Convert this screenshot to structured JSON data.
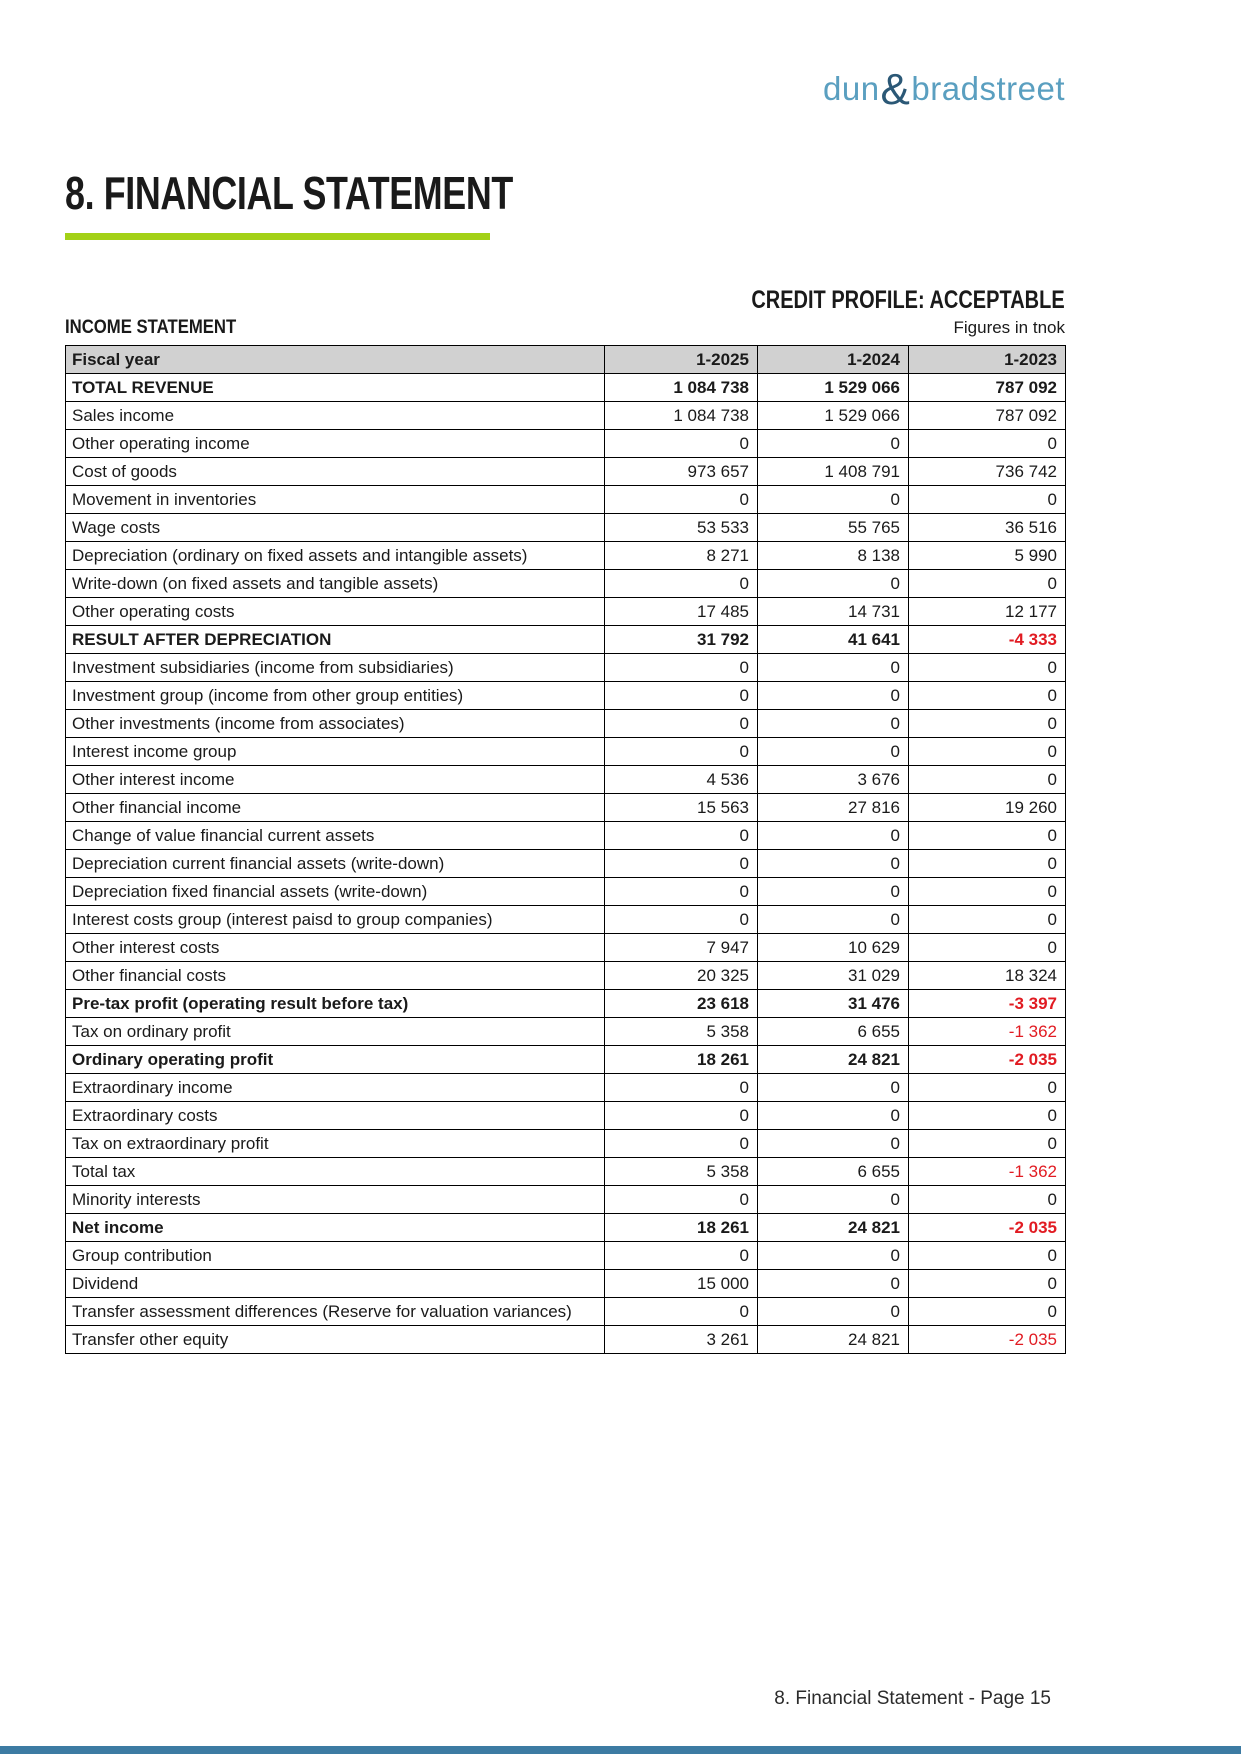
{
  "logo": {
    "dun": "dun",
    "amp": "&",
    "bradstreet": "bradstreet"
  },
  "page_title": "8. FINANCIAL STATEMENT",
  "credit_profile": "CREDIT PROFILE: ACCEPTABLE",
  "income_caption": "INCOME STATEMENT",
  "figures_caption": "Figures in tnok",
  "footer_text": "8. Financial Statement - Page 15",
  "colors": {
    "accent_green": "#a3d117",
    "logo_light_blue": "#5a9fc0",
    "logo_dark_blue": "#2b5876",
    "negative_red": "#e11b22",
    "header_gray": "#d1d1d1",
    "bottom_bar_blue": "#3d7ba3"
  },
  "table": {
    "header": {
      "label": "Fiscal year",
      "cols": [
        "1-2025",
        "1-2024",
        "1-2023"
      ]
    },
    "rows": [
      {
        "label": "TOTAL REVENUE",
        "bold": true,
        "values": [
          "1 084 738",
          "1 529 066",
          "787 092"
        ]
      },
      {
        "label": "Sales income",
        "bold": false,
        "values": [
          "1 084 738",
          "1 529 066",
          "787 092"
        ]
      },
      {
        "label": "Other operating income",
        "bold": false,
        "values": [
          "0",
          "0",
          "0"
        ]
      },
      {
        "label": "Cost of goods",
        "bold": false,
        "values": [
          "973 657",
          "1 408 791",
          "736 742"
        ]
      },
      {
        "label": "Movement in inventories",
        "bold": false,
        "values": [
          "0",
          "0",
          "0"
        ]
      },
      {
        "label": "Wage costs",
        "bold": false,
        "values": [
          "53 533",
          "55 765",
          "36 516"
        ]
      },
      {
        "label": "Depreciation (ordinary on fixed assets and intangible assets)",
        "bold": false,
        "values": [
          "8 271",
          "8 138",
          "5 990"
        ]
      },
      {
        "label": "Write-down (on fixed assets and tangible assets)",
        "bold": false,
        "values": [
          "0",
          "0",
          "0"
        ]
      },
      {
        "label": "Other operating costs",
        "bold": false,
        "values": [
          "17 485",
          "14 731",
          "12 177"
        ]
      },
      {
        "label": "RESULT AFTER DEPRECIATION",
        "bold": true,
        "values": [
          "31 792",
          "41 641",
          "-4 333"
        ]
      },
      {
        "label": "Investment subsidiaries (income from subsidiaries)",
        "bold": false,
        "values": [
          "0",
          "0",
          "0"
        ]
      },
      {
        "label": "Investment group (income from other group entities)",
        "bold": false,
        "values": [
          "0",
          "0",
          "0"
        ]
      },
      {
        "label": "Other investments (income from associates)",
        "bold": false,
        "values": [
          "0",
          "0",
          "0"
        ]
      },
      {
        "label": "Interest income group",
        "bold": false,
        "values": [
          "0",
          "0",
          "0"
        ]
      },
      {
        "label": "Other interest income",
        "bold": false,
        "values": [
          "4 536",
          "3 676",
          "0"
        ]
      },
      {
        "label": "Other financial income",
        "bold": false,
        "values": [
          "15 563",
          "27 816",
          "19 260"
        ]
      },
      {
        "label": "Change of value financial current assets",
        "bold": false,
        "values": [
          "0",
          "0",
          "0"
        ]
      },
      {
        "label": "Depreciation current financial assets (write-down)",
        "bold": false,
        "values": [
          "0",
          "0",
          "0"
        ]
      },
      {
        "label": "Depreciation fixed financial assets (write-down)",
        "bold": false,
        "values": [
          "0",
          "0",
          "0"
        ]
      },
      {
        "label": "Interest costs group (interest paisd to group companies)",
        "bold": false,
        "values": [
          "0",
          "0",
          "0"
        ]
      },
      {
        "label": "Other interest costs",
        "bold": false,
        "values": [
          "7 947",
          "10 629",
          "0"
        ]
      },
      {
        "label": "Other financial costs",
        "bold": false,
        "values": [
          "20 325",
          "31 029",
          "18 324"
        ]
      },
      {
        "label": "Pre-tax profit (operating result before tax)",
        "bold": true,
        "values": [
          "23 618",
          "31 476",
          "-3 397"
        ]
      },
      {
        "label": "Tax on ordinary profit",
        "bold": false,
        "values": [
          "5 358",
          "6 655",
          "-1 362"
        ]
      },
      {
        "label": "Ordinary operating profit",
        "bold": true,
        "values": [
          "18 261",
          "24 821",
          "-2 035"
        ]
      },
      {
        "label": "Extraordinary income",
        "bold": false,
        "values": [
          "0",
          "0",
          "0"
        ]
      },
      {
        "label": "Extraordinary costs",
        "bold": false,
        "values": [
          "0",
          "0",
          "0"
        ]
      },
      {
        "label": "Tax on extraordinary profit",
        "bold": false,
        "values": [
          "0",
          "0",
          "0"
        ]
      },
      {
        "label": "Total tax",
        "bold": false,
        "values": [
          "5 358",
          "6 655",
          "-1 362"
        ]
      },
      {
        "label": "Minority interests",
        "bold": false,
        "values": [
          "0",
          "0",
          "0"
        ]
      },
      {
        "label": "Net income",
        "bold": true,
        "values": [
          "18 261",
          "24 821",
          "-2 035"
        ]
      },
      {
        "label": "Group contribution",
        "bold": false,
        "values": [
          "0",
          "0",
          "0"
        ]
      },
      {
        "label": "Dividend",
        "bold": false,
        "values": [
          "15 000",
          "0",
          "0"
        ]
      },
      {
        "label": "Transfer assessment differences (Reserve for valuation variances)",
        "bold": false,
        "values": [
          "0",
          "0",
          "0"
        ]
      },
      {
        "label": "Transfer other equity",
        "bold": false,
        "values": [
          "3 261",
          "24 821",
          "-2 035"
        ]
      }
    ]
  }
}
